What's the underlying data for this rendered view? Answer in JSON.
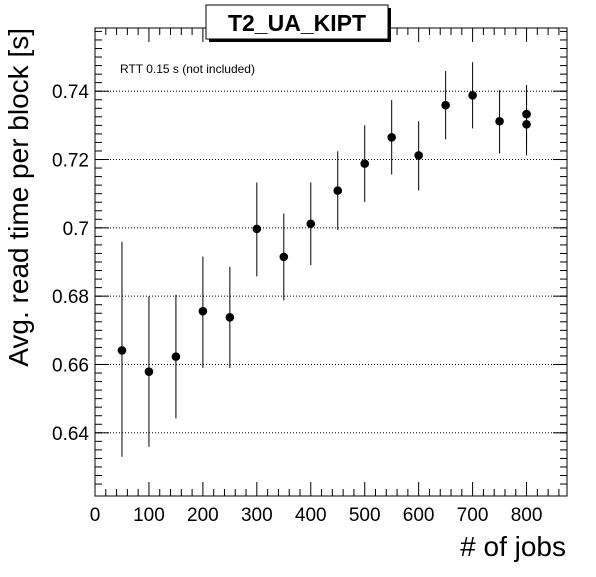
{
  "chart_data": {
    "type": "scatter",
    "title": "T2_UA_KIPT",
    "xlabel": "# of jobs",
    "ylabel": "Avg. read time per block [s]",
    "annotation": "RTT 0.15 s (not included)",
    "xlim": [
      0,
      875
    ],
    "ylim": [
      0.6215,
      0.7585
    ],
    "x_ticks": [
      0,
      100,
      200,
      300,
      400,
      500,
      600,
      700,
      800
    ],
    "x_tick_labels": [
      "0",
      "100",
      "200",
      "300",
      "400",
      "500",
      "600",
      "700",
      "800"
    ],
    "y_ticks": [
      0.64,
      0.66,
      0.68,
      0.7,
      0.72,
      0.74
    ],
    "y_tick_labels": [
      "0.64",
      "0.66",
      "0.68",
      "0.7",
      "0.72",
      "0.74"
    ],
    "grid_y": true,
    "grid_x": false,
    "marker_color": "#000000",
    "points": [
      {
        "x": 50,
        "y": 0.6641,
        "err_low": 0.0311,
        "err_high": 0.0318
      },
      {
        "x": 100,
        "y": 0.6579,
        "err_low": 0.022,
        "err_high": 0.022
      },
      {
        "x": 150,
        "y": 0.6623,
        "err_low": 0.0181,
        "err_high": 0.0181
      },
      {
        "x": 200,
        "y": 0.6756,
        "err_low": 0.0166,
        "err_high": 0.016
      },
      {
        "x": 250,
        "y": 0.6738,
        "err_low": 0.0148,
        "err_high": 0.0148
      },
      {
        "x": 300,
        "y": 0.6997,
        "err_low": 0.0139,
        "err_high": 0.0136
      },
      {
        "x": 350,
        "y": 0.6915,
        "err_low": 0.0127,
        "err_high": 0.0127
      },
      {
        "x": 400,
        "y": 0.7012,
        "err_low": 0.0121,
        "err_high": 0.0121
      },
      {
        "x": 450,
        "y": 0.7109,
        "err_low": 0.0115,
        "err_high": 0.0115
      },
      {
        "x": 500,
        "y": 0.7188,
        "err_low": 0.0112,
        "err_high": 0.0112
      },
      {
        "x": 550,
        "y": 0.7265,
        "err_low": 0.0109,
        "err_high": 0.0109
      },
      {
        "x": 600,
        "y": 0.7212,
        "err_low": 0.0103,
        "err_high": 0.01
      },
      {
        "x": 650,
        "y": 0.7359,
        "err_low": 0.01,
        "err_high": 0.01
      },
      {
        "x": 700,
        "y": 0.7388,
        "err_low": 0.0097,
        "err_high": 0.0097
      },
      {
        "x": 750,
        "y": 0.7312,
        "err_low": 0.0094,
        "err_high": 0.0091
      },
      {
        "x": 800,
        "y": 0.7333,
        "err_low": 0.0085,
        "err_high": 0.0085
      },
      {
        "x": 800,
        "y": 0.7303,
        "err_low": 0.0091,
        "err_high": 0.0091
      }
    ]
  }
}
